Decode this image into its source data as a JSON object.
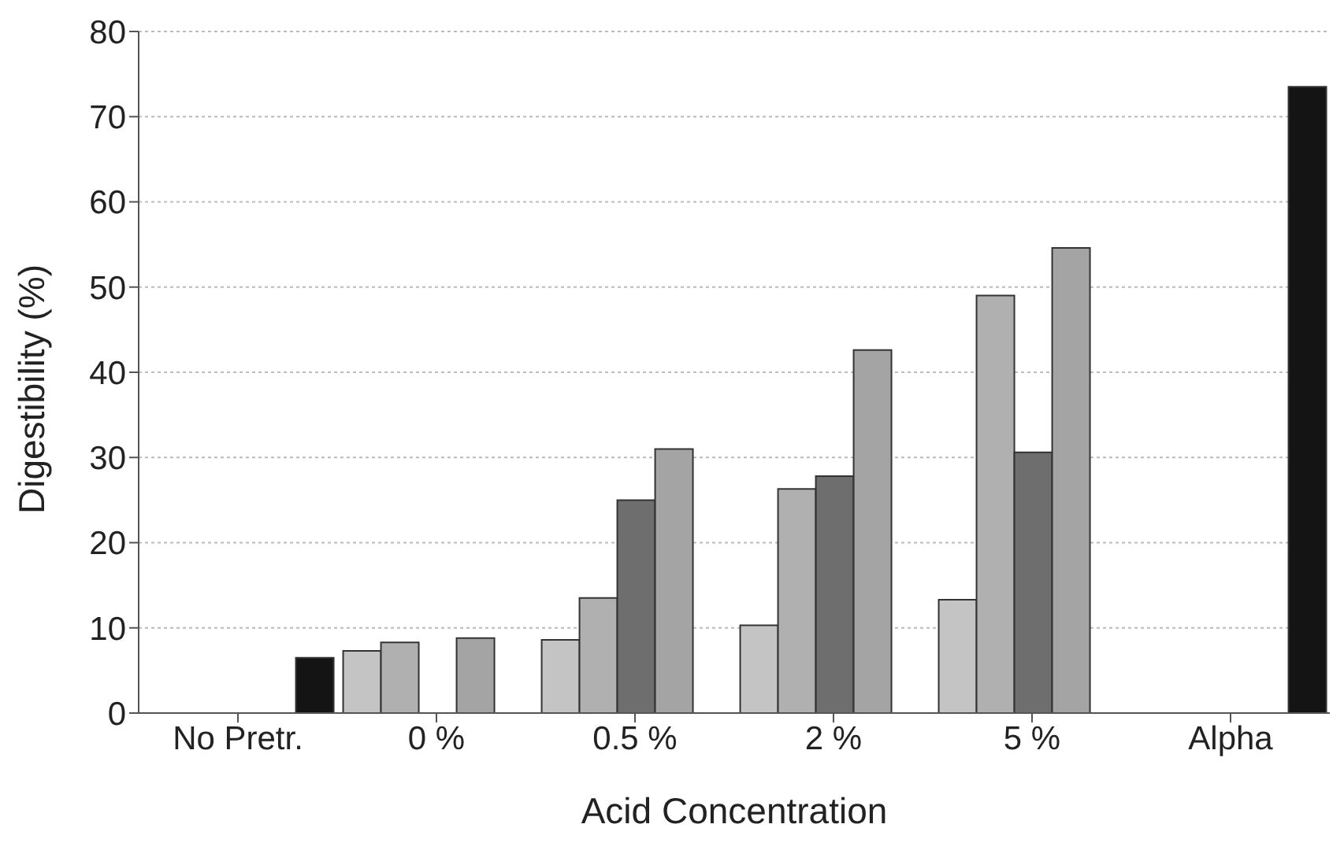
{
  "chart_data": {
    "type": "bar",
    "xlabel": "Acid Concentration",
    "ylabel": "Digestibility (%)",
    "categories": [
      "No Pretr.",
      "0 %",
      "0.5 %",
      "2 %",
      "5 %",
      "Alpha"
    ],
    "series": [
      {
        "color": "#c4c4c4",
        "values": [
          null,
          7.3,
          8.6,
          10.3,
          13.3,
          null
        ]
      },
      {
        "color": "#b0b0b0",
        "values": [
          null,
          8.3,
          13.5,
          26.3,
          49,
          null
        ]
      },
      {
        "color": "#6e6e6e",
        "values": [
          null,
          null,
          25,
          27.8,
          30.6,
          null
        ]
      },
      {
        "color": "#a4a4a4",
        "values": [
          null,
          8.8,
          31,
          42.6,
          54.6,
          null
        ]
      },
      {
        "color": "#141414",
        "values": [
          6.5,
          null,
          null,
          null,
          null,
          73.5
        ]
      }
    ],
    "ylim": [
      0,
      80
    ],
    "yticks": [
      0,
      10,
      20,
      30,
      40,
      50,
      60,
      70,
      80
    ],
    "grid": "y"
  }
}
